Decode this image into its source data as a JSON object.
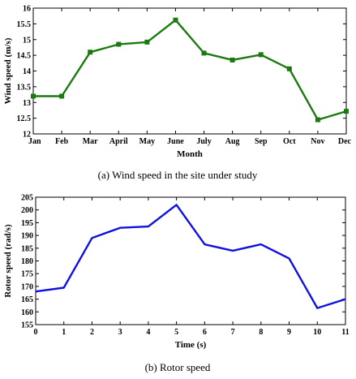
{
  "chart_data": [
    {
      "type": "line",
      "caption": "(a) Wind speed in the site under study",
      "xlabel": "Month",
      "ylabel": "Wind speed (m/s)",
      "categories": [
        "Jan",
        "Feb",
        "Mar",
        "April",
        "May",
        "June",
        "July",
        "Aug",
        "Sep",
        "Oct",
        "Nov",
        "Dec"
      ],
      "series": [
        {
          "values": [
            13.2,
            13.2,
            14.6,
            14.85,
            14.92,
            15.62,
            14.57,
            14.35,
            14.52,
            14.07,
            12.45,
            12.72
          ],
          "color": "#1a7a10",
          "marker": "square"
        }
      ],
      "ylim": [
        12,
        16
      ],
      "yticks": [
        "12",
        "12.5",
        "13",
        "13.5",
        "14",
        "14.5",
        "15",
        "15.5",
        "16"
      ],
      "grid": false
    },
    {
      "type": "line",
      "caption": "(b) Rotor speed",
      "xlabel": "Time (s)",
      "ylabel": "Rotor speed (rad/s)",
      "x": [
        0,
        1,
        2,
        3,
        4,
        5,
        6,
        7,
        8,
        9,
        10,
        11
      ],
      "series": [
        {
          "values": [
            168,
            169.5,
            189,
            193,
            193.5,
            202,
            186.5,
            184,
            186.5,
            181,
            161.5,
            165
          ],
          "color": "#1010e0",
          "marker": "none"
        }
      ],
      "xlim": [
        0,
        11
      ],
      "ylim": [
        155,
        205
      ],
      "xticks": [
        "0",
        "1",
        "2",
        "3",
        "4",
        "5",
        "6",
        "7",
        "8",
        "9",
        "10",
        "11"
      ],
      "yticks": [
        "155",
        "160",
        "165",
        "170",
        "175",
        "180",
        "185",
        "190",
        "195",
        "200",
        "205"
      ],
      "grid": false
    }
  ]
}
